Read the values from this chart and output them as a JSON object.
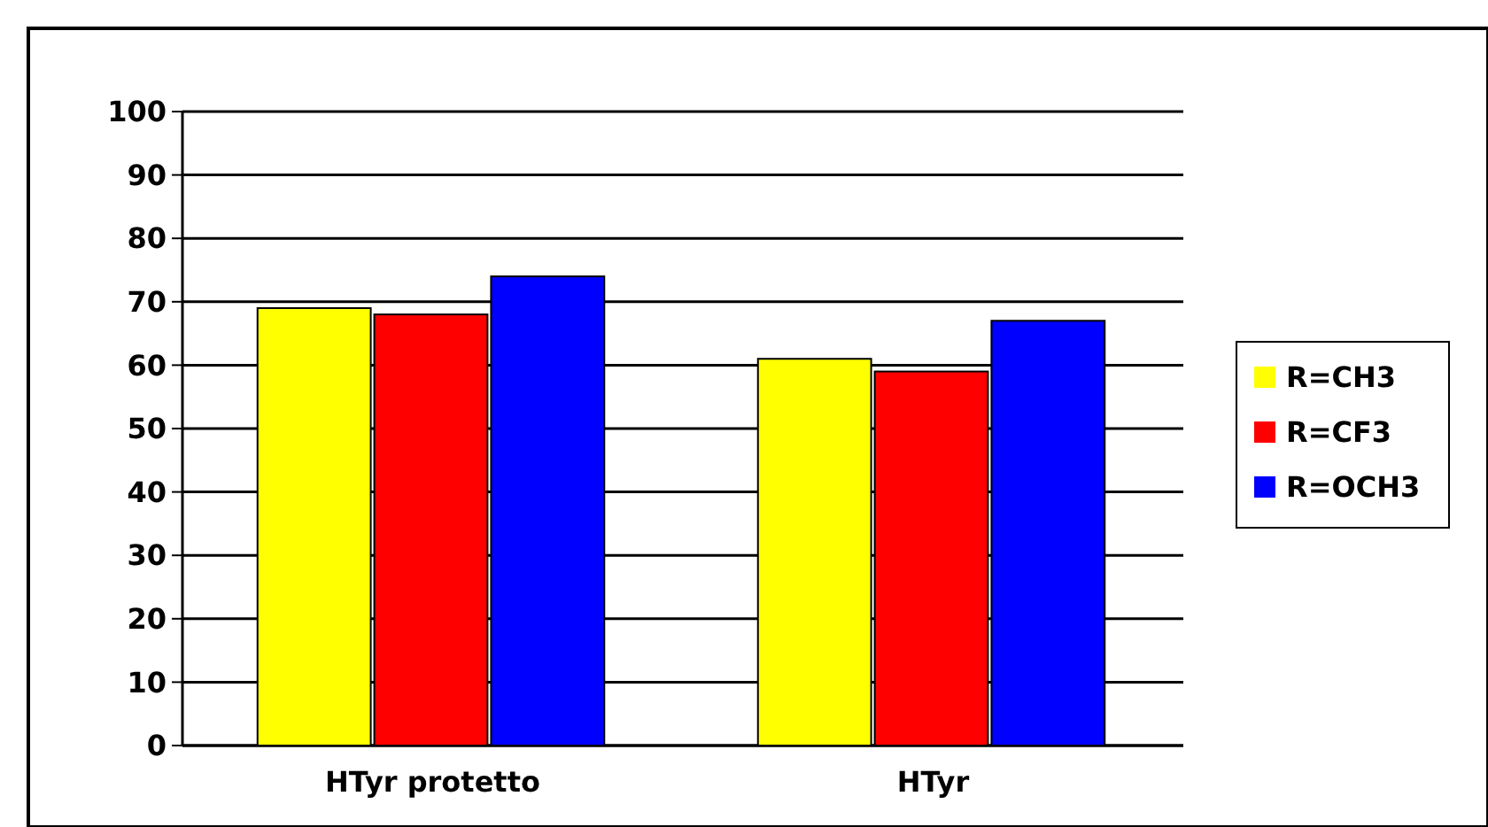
{
  "chart_data": {
    "type": "bar",
    "categories": [
      "HTyr protetto",
      "HTyr"
    ],
    "series": [
      {
        "name": "R=CH3",
        "color": "#ffff00",
        "values": [
          69,
          61
        ]
      },
      {
        "name": "R=CF3",
        "color": "#ff0000",
        "values": [
          68,
          59
        ]
      },
      {
        "name": "R=OCH3",
        "color": "#0000ff",
        "values": [
          74,
          67
        ]
      }
    ],
    "ylim": [
      0,
      100
    ],
    "yticks": [
      0,
      10,
      20,
      30,
      40,
      50,
      60,
      70,
      80,
      90,
      100
    ],
    "grid": "y",
    "legend": "right"
  }
}
